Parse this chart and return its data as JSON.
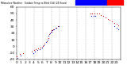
{
  "title": "Milwaukee Weather Outdoor Temp vs Wind Chill (24 Hours)",
  "bg_color": "#ffffff",
  "grid_color": "#888888",
  "temp_color": "#cc0000",
  "windchill_color": "#0000cc",
  "title_bar_blue": "#0000ff",
  "title_bar_red": "#ff0000",
  "ylim": [
    -20,
    60
  ],
  "xlim": [
    0,
    24
  ],
  "tick_label_fontsize": 3.2,
  "y_ticks": [
    -20,
    -10,
    0,
    10,
    20,
    30,
    40,
    50,
    60
  ],
  "y_tick_labels": [
    "-20",
    "-10",
    "0",
    "10",
    "20",
    "30",
    "40",
    "50",
    "60"
  ],
  "grid_x_positions": [
    2,
    4,
    6,
    8,
    10,
    12,
    14,
    16,
    18,
    20,
    22,
    24
  ],
  "temp_data_x": [
    0.1,
    0.8,
    1.5,
    3.5,
    4.0,
    4.5,
    5.0,
    5.5,
    6.0,
    6.5,
    7.0,
    7.3,
    7.6,
    7.9,
    8.1,
    8.4,
    9.0,
    9.5,
    17.0,
    17.5,
    18.0,
    18.5,
    19.0,
    19.5,
    20.0,
    20.5,
    21.0,
    21.5,
    22.0,
    22.5,
    23.0,
    23.5
  ],
  "temp_data_y": [
    -15,
    -12,
    -10,
    -8,
    -6,
    -5,
    -3,
    -2,
    0,
    4,
    8,
    12,
    18,
    22,
    24,
    26,
    28,
    30,
    50,
    50,
    50,
    50,
    50,
    48,
    46,
    44,
    42,
    40,
    38,
    36,
    34,
    32
  ],
  "wc_data_x": [
    0.3,
    1.0,
    3.8,
    4.3,
    4.8,
    5.3,
    5.8,
    6.3,
    6.8,
    7.1,
    7.4,
    7.7,
    8.0,
    8.3,
    8.7,
    9.2,
    9.7,
    17.2,
    17.7,
    18.2,
    22.5,
    23.0,
    23.5
  ],
  "wc_data_y": [
    -18,
    -14,
    -10,
    -8,
    -6,
    -4,
    -2,
    2,
    6,
    10,
    16,
    20,
    22,
    24,
    26,
    28,
    30,
    46,
    46,
    46,
    30,
    28,
    26
  ]
}
